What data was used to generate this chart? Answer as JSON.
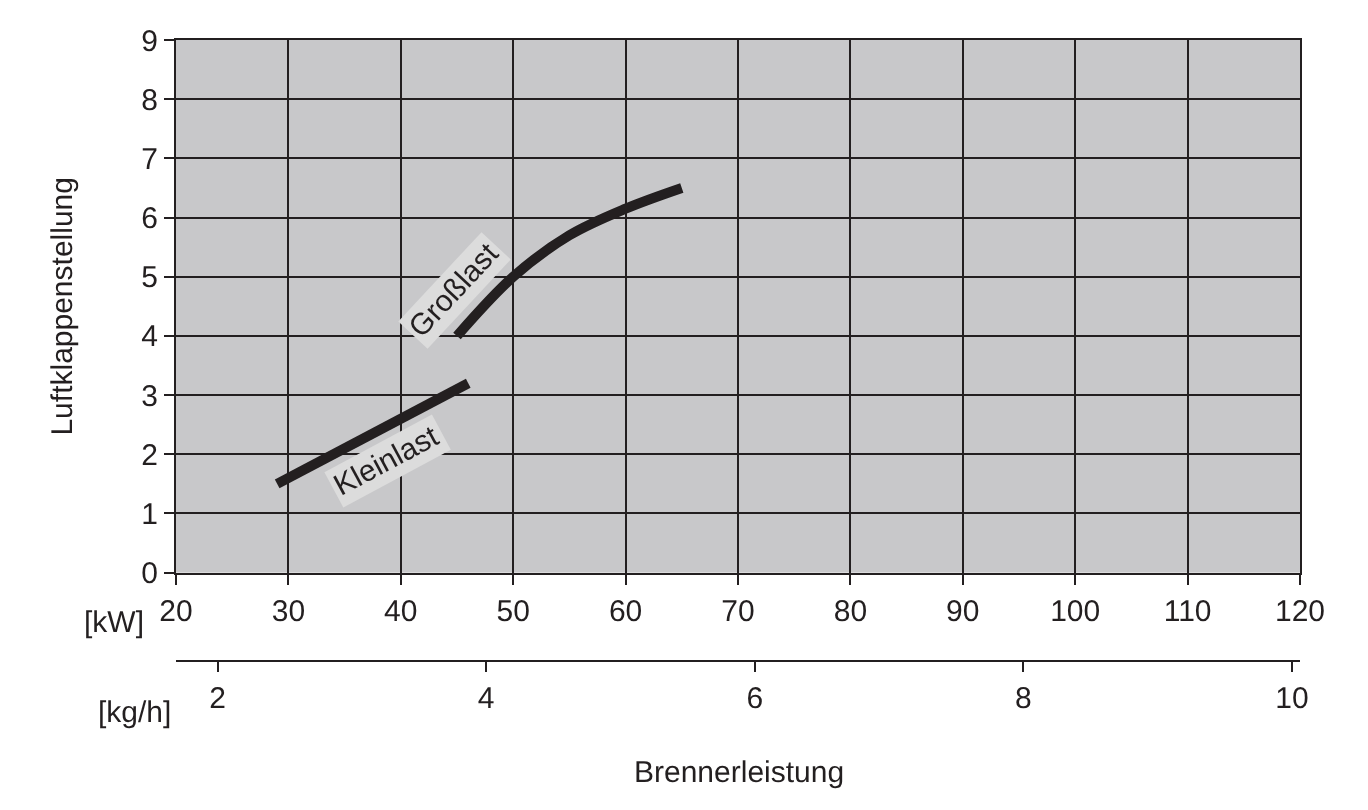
{
  "chart_data": {
    "type": "line",
    "ylabel": "Luftklappenstellung",
    "xlabel": "[kW]",
    "x2label": "[kg/h]",
    "annotations": [
      "Brennerleistung"
    ],
    "xlim": [
      20,
      120
    ],
    "xticks": [
      20,
      30,
      40,
      50,
      60,
      70,
      80,
      90,
      100,
      110,
      120
    ],
    "ylim": [
      0,
      9
    ],
    "yticks": [
      0,
      1,
      2,
      3,
      4,
      5,
      6,
      7,
      8,
      9
    ],
    "x2lim": [
      1.69,
      10.06
    ],
    "x2ticks": [
      2,
      4,
      6,
      8,
      10
    ],
    "grid": true,
    "legend": false,
    "marker": "none",
    "line_style": "solid",
    "series": [
      {
        "name": "Kleinlast",
        "color": "#231f20",
        "x": [
          29,
          46
        ],
        "values": [
          1.5,
          3.2
        ]
      },
      {
        "name": "Großlast",
        "color": "#231f20",
        "x": [
          45,
          50,
          55,
          60,
          65
        ],
        "values": [
          4.0,
          5.0,
          5.7,
          6.15,
          6.5
        ]
      }
    ]
  }
}
